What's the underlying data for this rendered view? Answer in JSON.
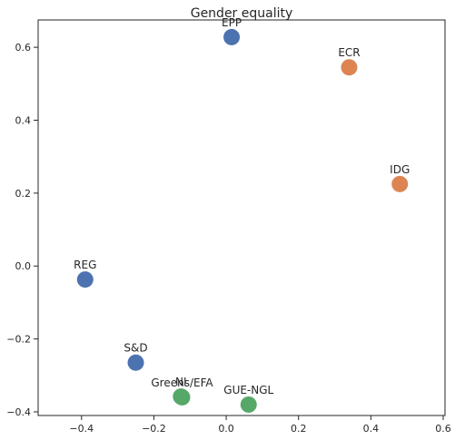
{
  "chart_data": {
    "type": "scatter",
    "title": "Gender equality",
    "xlabel": "",
    "ylabel": "",
    "xlim": [
      -0.52,
      0.605
    ],
    "ylim": [
      -0.41,
      0.675
    ],
    "xticks": [
      -0.4,
      -0.2,
      0.0,
      0.2,
      0.4,
      0.6
    ],
    "xtick_labels": [
      "−0.4",
      "−0.2",
      "0.0",
      "0.2",
      "0.4",
      "0.6"
    ],
    "yticks": [
      -0.4,
      -0.2,
      0.0,
      0.2,
      0.4,
      0.6
    ],
    "ytick_labels": [
      "−0.4",
      "−0.2",
      "0.0",
      "0.2",
      "0.4",
      "0.6"
    ],
    "grid": false,
    "colors": {
      "blue": "#4c72b0",
      "orange": "#dd8452",
      "green": "#55a868"
    },
    "points": [
      {
        "label": "EPP",
        "x": 0.015,
        "y": 0.628,
        "color": "blue"
      },
      {
        "label": "ECR",
        "x": 0.34,
        "y": 0.545,
        "color": "orange"
      },
      {
        "label": "IDG",
        "x": 0.48,
        "y": 0.225,
        "color": "orange"
      },
      {
        "label": "REG",
        "x": -0.39,
        "y": -0.037,
        "color": "blue"
      },
      {
        "label": "S&D",
        "x": -0.25,
        "y": -0.265,
        "color": "blue"
      },
      {
        "label": "NI",
        "x": -0.125,
        "y": -0.358,
        "color": "green"
      },
      {
        "label": "Greens/EFA",
        "x": -0.122,
        "y": -0.36,
        "color": "green"
      },
      {
        "label": "GUE-NGL",
        "x": 0.062,
        "y": -0.38,
        "color": "green"
      }
    ]
  }
}
